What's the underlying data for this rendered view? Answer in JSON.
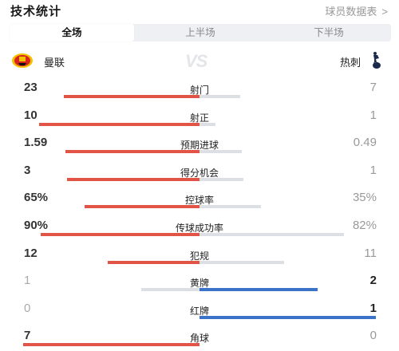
{
  "header": {
    "title": "技术统计",
    "link_label": "球员数据表",
    "link_chevron": ">"
  },
  "tabs": [
    {
      "label": "全场",
      "active": true
    },
    {
      "label": "上半场",
      "active": false
    },
    {
      "label": "下半场",
      "active": false
    }
  ],
  "teams": {
    "home": {
      "name": "曼联",
      "crest_icon": "manchester-united-crest-icon"
    },
    "vs_label": "VS",
    "away": {
      "name": "热刺",
      "crest_icon": "tottenham-crest-icon"
    }
  },
  "colors": {
    "home_bar": "#e25546",
    "away_bar": "#3b73c9",
    "neutral_bar": "#dcdfe4"
  },
  "stats": [
    {
      "label": "射门",
      "home": "23",
      "away": "7",
      "home_share": 0.77,
      "away_share": 0.23,
      "leader": "home"
    },
    {
      "label": "射正",
      "home": "10",
      "away": "1",
      "home_share": 0.91,
      "away_share": 0.09,
      "leader": "home"
    },
    {
      "label": "预期进球",
      "home": "1.59",
      "away": "0.49",
      "home_share": 0.76,
      "away_share": 0.24,
      "leader": "home"
    },
    {
      "label": "得分机会",
      "home": "3",
      "away": "1",
      "home_share": 0.75,
      "away_share": 0.25,
      "leader": "home"
    },
    {
      "label": "控球率",
      "home": "65%",
      "away": "35%",
      "home_share": 0.65,
      "away_share": 0.35,
      "leader": "home"
    },
    {
      "label": "传球成功率",
      "home": "90%",
      "away": "82%",
      "home_share": 0.9,
      "away_share": 0.82,
      "leader": "home"
    },
    {
      "label": "犯规",
      "home": "12",
      "away": "11",
      "home_share": 0.52,
      "away_share": 0.48,
      "leader": "home"
    },
    {
      "label": "黄牌",
      "home": "1",
      "away": "2",
      "home_share": 0.33,
      "away_share": 0.67,
      "leader": "away"
    },
    {
      "label": "红牌",
      "home": "0",
      "away": "1",
      "home_share": 0.0,
      "away_share": 1.0,
      "leader": "away"
    },
    {
      "label": "角球",
      "home": "7",
      "away": "0",
      "home_share": 1.0,
      "away_share": 0.0,
      "leader": "home"
    }
  ]
}
